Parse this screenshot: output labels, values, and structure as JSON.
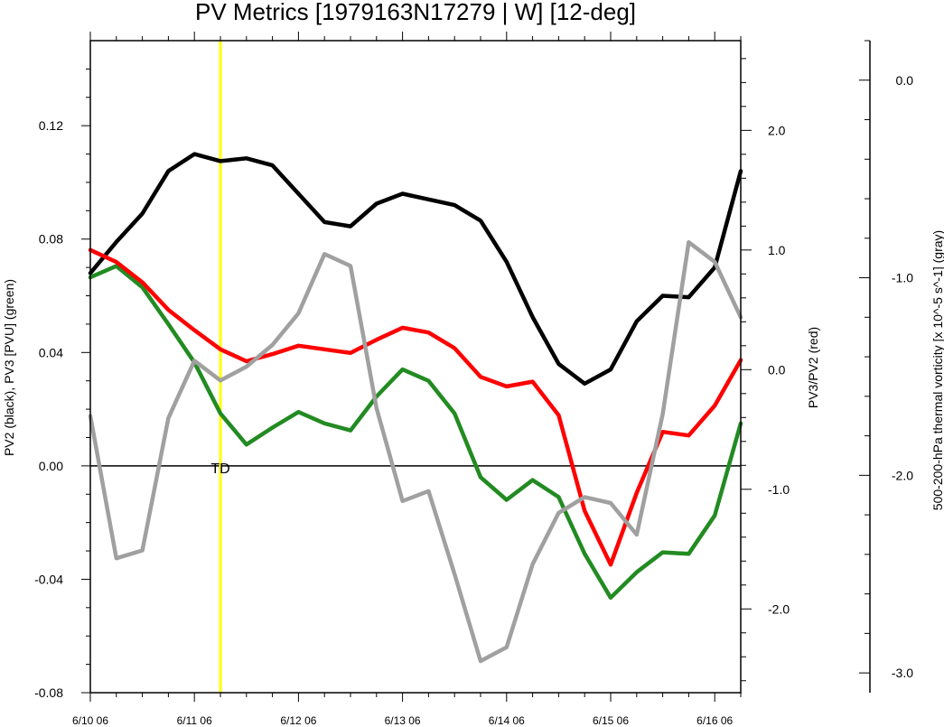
{
  "chart_data": {
    "type": "line",
    "title": "PV Metrics [1979163N17279 | W] [12-deg]",
    "y_left_label": "PV2 (black), PV3 [PVU] (green)",
    "y_right_label": "PV3/PV2 (red)",
    "y_far_right_label": "500-200-hPa thermal vorticity [x 10^-5 s^-1] (gray)",
    "x_ticks": [
      {
        "t": 0,
        "label": "6/10 06"
      },
      {
        "t": 4,
        "label": "6/11 06"
      },
      {
        "t": 8,
        "label": "6/12 06"
      },
      {
        "t": 12,
        "label": "6/13 06"
      },
      {
        "t": 16,
        "label": "6/14 06"
      },
      {
        "t": 20,
        "label": "6/15 06"
      },
      {
        "t": 24,
        "label": "6/16 06"
      }
    ],
    "x_range": [
      0,
      25
    ],
    "y_left": {
      "range": [
        -0.08,
        0.15
      ],
      "major": [
        -0.08,
        -0.04,
        0.0,
        0.04,
        0.08,
        0.12
      ],
      "labels": [
        "-0.08",
        "-0.04",
        "0.00",
        "0.04",
        "0.08",
        "0.12"
      ]
    },
    "y_right": {
      "range": [
        -2.7,
        2.75
      ],
      "major": [
        -2.0,
        -1.0,
        0.0,
        1.0,
        2.0
      ],
      "labels": [
        "-2.0",
        "-1.0",
        "0.0",
        "1.0",
        "2.0"
      ]
    },
    "y_far_right": {
      "range": [
        -3.1,
        0.2
      ],
      "major": [
        -3.0,
        -2.0,
        -1.0,
        0.0
      ],
      "labels": [
        "-3.0",
        "-2.0",
        "-1.0",
        "0.0"
      ]
    },
    "vertical_marker": {
      "t": 5,
      "color": "#ffff00"
    },
    "annotation": {
      "text": "TD",
      "t": 5,
      "y": 0.0
    },
    "zero_line": true,
    "series": [
      {
        "axis": "left",
        "color": "#000000",
        "values": [
          0.068,
          0.079,
          0.089,
          0.104,
          0.11,
          0.1075,
          0.1085,
          0.106,
          0.096,
          0.086,
          0.0845,
          0.0925,
          0.096,
          0.094,
          0.092,
          0.0865,
          0.072,
          0.0525,
          0.036,
          0.029,
          0.034,
          0.051,
          0.06,
          0.0595,
          0.07,
          0.104
        ]
      },
      {
        "axis": "left",
        "color": "#228b22",
        "values": [
          0.0665,
          0.0705,
          0.063,
          0.05,
          0.0365,
          0.0185,
          0.0075,
          0.0135,
          0.019,
          0.015,
          0.0125,
          0.0245,
          0.034,
          0.03,
          0.0185,
          -0.004,
          -0.012,
          -0.005,
          -0.011,
          -0.031,
          -0.0465,
          -0.0375,
          -0.0305,
          -0.031,
          -0.0175,
          0.015
        ]
      },
      {
        "axis": "right",
        "color": "#ff0000",
        "values": [
          1.0,
          0.9,
          0.73,
          0.5,
          0.33,
          0.17,
          0.07,
          0.13,
          0.2,
          0.17,
          0.14,
          0.25,
          0.35,
          0.31,
          0.18,
          -0.06,
          -0.14,
          -0.1,
          -0.38,
          -1.18,
          -1.63,
          -1.03,
          -0.52,
          -0.55,
          -0.3,
          0.08
        ]
      },
      {
        "axis": "far_right",
        "color": "#a0a0a0",
        "values": [
          -1.7,
          -2.42,
          -2.38,
          -1.71,
          -1.42,
          -1.52,
          -1.45,
          -1.34,
          -1.18,
          -0.88,
          -0.94,
          -1.66,
          -2.13,
          -2.08,
          -2.5,
          -2.94,
          -2.87,
          -2.45,
          -2.19,
          -2.11,
          -2.14,
          -2.3,
          -1.69,
          -0.82,
          -0.92,
          -1.2
        ]
      }
    ]
  }
}
